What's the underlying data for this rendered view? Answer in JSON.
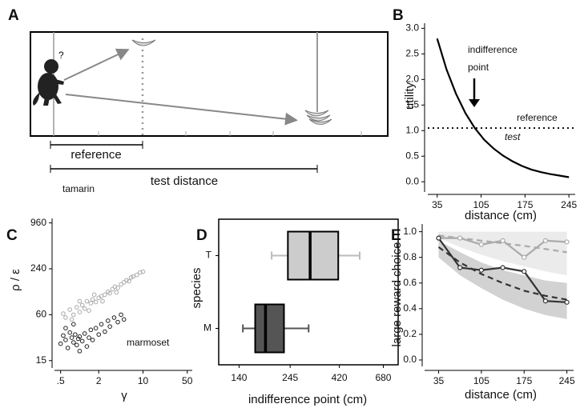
{
  "chart_data": [
    {
      "panel": "A",
      "type": "diagram",
      "question": "?",
      "reference_label": "reference",
      "test_label": "test distance"
    },
    {
      "panel": "B",
      "type": "line",
      "xlabel": "distance (cm)",
      "ylabel": "utility",
      "x": [
        35,
        50,
        65,
        80,
        95,
        110,
        125,
        140,
        155,
        170,
        185,
        200,
        215,
        230,
        245
      ],
      "series": [
        {
          "name": "test",
          "color": "#000000",
          "values": [
            2.8,
            2.19,
            1.72,
            1.34,
            1.05,
            0.82,
            0.65,
            0.51,
            0.4,
            0.31,
            0.24,
            0.19,
            0.15,
            0.12,
            0.09
          ]
        }
      ],
      "reference": {
        "value": 1.05,
        "label": "reference"
      },
      "annotation": [
        "indifference",
        "point"
      ],
      "xlim": [
        20,
        255
      ],
      "xticks": [
        35,
        105,
        175,
        245
      ],
      "ylim": [
        -0.2,
        3.1
      ],
      "yticks": [
        {
          "value": 0,
          "label": "0.0"
        },
        0.5,
        {
          "value": 1,
          "label": "1.0"
        },
        1.5,
        {
          "value": 2,
          "label": "2.0"
        },
        2.5,
        {
          "value": 3,
          "label": "3.0"
        }
      ]
    },
    {
      "panel": "C",
      "type": "scatter",
      "xlabel": "γ",
      "ylabel": "ρ / ε",
      "log_x": true,
      "log_y": true,
      "series": [
        {
          "name": "tamarin",
          "color": "#aaaaaa",
          "x": [
            0.6,
            0.7,
            0.8,
            0.9,
            1.0,
            1.1,
            1.2,
            1.3,
            1.5,
            1.6,
            1.8,
            2.0,
            2.2,
            2.5,
            2.8,
            3.0,
            3.3,
            3.6,
            4.0,
            4.5,
            5.0,
            5.5,
            6.0,
            6.5,
            7.0,
            8.0,
            9.0,
            10,
            0.75,
            1.4,
            2.3,
            3.8,
            0.55,
            1.0,
            1.7
          ],
          "values": [
            55,
            70,
            60,
            75,
            65,
            80,
            72,
            90,
            85,
            95,
            88,
            100,
            105,
            110,
            120,
            115,
            130,
            140,
            135,
            150,
            160,
            170,
            165,
            185,
            190,
            200,
            215,
            220,
            52,
            68,
            90,
            118,
            62,
            90,
            110
          ]
        },
        {
          "name": "marmoset",
          "color": "#222222",
          "x": [
            0.5,
            0.55,
            0.6,
            0.65,
            0.7,
            0.75,
            0.8,
            0.85,
            0.9,
            0.95,
            1.0,
            1.1,
            1.2,
            1.3,
            1.4,
            1.5,
            1.6,
            1.8,
            2.0,
            2.2,
            2.5,
            2.8,
            3.0,
            3.5,
            4.0,
            4.5,
            5.0,
            0.6,
            1.0,
            0.8
          ],
          "values": [
            25,
            32,
            28,
            22,
            35,
            30,
            26,
            33,
            24,
            29,
            31,
            27,
            34,
            23,
            30,
            38,
            28,
            40,
            33,
            45,
            36,
            50,
            42,
            55,
            48,
            60,
            52,
            40,
            20,
            45
          ]
        }
      ],
      "xlim": [
        0.4,
        60
      ],
      "xticks": [
        {
          "value": 0.5,
          "label": ".5"
        },
        2,
        10,
        50
      ],
      "ylim": [
        12,
        1100
      ],
      "yticks": [
        15,
        60,
        240,
        960
      ]
    },
    {
      "panel": "D",
      "type": "box",
      "xlabel": "indifference point (cm)",
      "ylabel": "species",
      "log_x": true,
      "categories": [
        "T",
        "M"
      ],
      "boxes": [
        {
          "whisker_low": 200,
          "q1": 239,
          "median": 305,
          "q3": 415,
          "whisker_high": 525,
          "color": "#cccccc",
          "whisker_color": "#bbbbbb"
        },
        {
          "whisker_low": 146,
          "q1": 167,
          "median": 187,
          "q3": 229,
          "whisker_high": 300,
          "color": "#555555",
          "whisker_color": "#555555"
        }
      ],
      "xlim": [
        112,
        800
      ],
      "xticks": [
        140,
        245,
        420,
        680
      ]
    },
    {
      "panel": "E",
      "type": "line",
      "xlabel": "distance (cm)",
      "ylabel": "large reward choice",
      "markers": true,
      "x": [
        35,
        70,
        105,
        140,
        175,
        210,
        245
      ],
      "bands": [
        {
          "color": "#ebebeb",
          "lower": [
            0.95,
            0.88,
            0.82,
            0.77,
            0.73,
            0.69,
            0.66
          ],
          "upper": [
            1.0,
            1.0,
            1.0,
            1.0,
            1.0,
            1.0,
            1.0
          ]
        },
        {
          "color": "#d2d2d2",
          "lower": [
            0.8,
            0.66,
            0.56,
            0.47,
            0.4,
            0.35,
            0.32
          ],
          "upper": [
            0.93,
            0.84,
            0.76,
            0.7,
            0.66,
            0.62,
            0.6
          ]
        }
      ],
      "fits": [
        {
          "color": "#aaaaaa",
          "values": [
            0.97,
            0.95,
            0.93,
            0.91,
            0.89,
            0.865,
            0.84
          ]
        },
        {
          "color": "#333333",
          "values": [
            0.88,
            0.76,
            0.67,
            0.6,
            0.54,
            0.5,
            0.47
          ]
        }
      ],
      "series": [
        {
          "color": "#aaaaaa",
          "values": [
            0.95,
            0.95,
            0.9,
            0.93,
            0.8,
            0.93,
            0.92
          ]
        },
        {
          "color": "#333333",
          "values": [
            0.95,
            0.72,
            0.7,
            0.72,
            0.69,
            0.46,
            0.45
          ]
        }
      ],
      "xlim": [
        12,
        256
      ],
      "xticks": [
        35,
        105,
        175,
        245
      ],
      "ylim": [
        -0.05,
        1.06
      ],
      "yticks": [
        {
          "value": 0,
          "label": "0.0"
        },
        0.2,
        0.4,
        0.6,
        0.8,
        {
          "value": 1,
          "label": "1.0"
        }
      ]
    }
  ]
}
